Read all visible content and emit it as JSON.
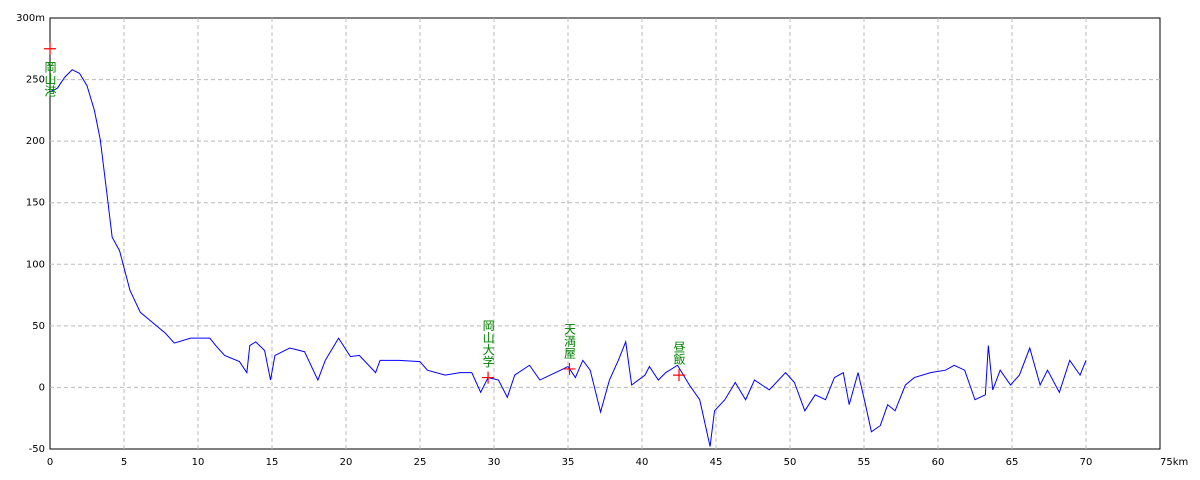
{
  "chart_data": {
    "type": "line",
    "x": [
      0,
      0.5,
      1,
      1.5,
      2,
      2.5,
      3,
      3.4,
      3.9,
      4.2,
      4.7,
      5.4,
      6.1,
      7.1,
      7.8,
      8.4,
      9.5,
      10.8,
      11.2,
      11.8,
      12.8,
      13.3,
      13.5,
      13.9,
      14.5,
      14.9,
      15.2,
      16.2,
      17.2,
      18.1,
      18.6,
      19.5,
      20.3,
      20.9,
      22,
      22.3,
      23.6,
      25,
      25.5,
      26.7,
      27.7,
      28.5,
      29.1,
      29.6,
      30.3,
      30.9,
      31.4,
      32.4,
      33.1,
      33.8,
      34.5,
      35,
      35.5,
      36,
      36.5,
      37.2,
      37.8,
      38.4,
      38.9,
      39.3,
      40.2,
      40.5,
      41.1,
      41.6,
      42.4,
      43.2,
      43.9,
      44.6,
      44.9,
      45.6,
      46.3,
      47,
      47.6,
      48.6,
      49.7,
      50.3,
      51,
      51.7,
      52.4,
      53,
      53.6,
      54,
      54.6,
      55.1,
      55.5,
      56.1,
      56.6,
      57.1,
      57.8,
      58.4,
      59.5,
      60.5,
      61.1,
      61.8,
      62.5,
      63.2,
      63.4,
      63.7,
      64.2,
      64.9,
      65.5,
      66.2,
      66.9,
      67.4,
      68.2,
      68.9,
      69.6,
      70
    ],
    "values": [
      240,
      243,
      252,
      258,
      255,
      245,
      225,
      201,
      152,
      122,
      111,
      79,
      61,
      51,
      44,
      36,
      40,
      40,
      34,
      26,
      21,
      12,
      34,
      37,
      30,
      6,
      26,
      32,
      29,
      6,
      22,
      40,
      25,
      26,
      12,
      22,
      22,
      21,
      14,
      10,
      12,
      12,
      -4,
      8,
      6,
      -8,
      10,
      18,
      6,
      10,
      14,
      17,
      8,
      22,
      14,
      -20,
      6,
      22,
      37,
      2,
      10,
      17,
      6,
      12,
      18,
      2,
      -10,
      -48,
      -19,
      -10,
      4,
      -10,
      6,
      -2,
      12,
      4,
      -19,
      -6,
      -10,
      8,
      12,
      -14,
      12,
      -14,
      -36,
      -31,
      -14,
      -19,
      2,
      8,
      12,
      14,
      18,
      14,
      -10,
      -6,
      34,
      -2,
      14,
      2,
      10,
      32,
      2,
      14,
      -4,
      22,
      10,
      22
    ],
    "color": "#0000ff",
    "xlim": [
      0,
      75
    ],
    "xticks": [
      0,
      5,
      10,
      15,
      20,
      25,
      30,
      35,
      40,
      45,
      50,
      55,
      60,
      65,
      70,
      {
        "value": 75,
        "label": "75km"
      }
    ],
    "ylim": [
      -50,
      300
    ],
    "yticks": [
      -50,
      0,
      50,
      100,
      150,
      200,
      250,
      {
        "value": 300,
        "label": "300m"
      }
    ],
    "grid": true,
    "markers": [
      {
        "label": "岡山港",
        "x": 0,
        "y": 275
      },
      {
        "label": "岡山大学",
        "x": 29.6,
        "y": 8
      },
      {
        "label": "天満屋",
        "x": 35.1,
        "y": 15
      },
      {
        "label": "昼飯",
        "x": 42.5,
        "y": 10
      }
    ],
    "marker_color": "#ff0000",
    "label_color": "#008000"
  }
}
